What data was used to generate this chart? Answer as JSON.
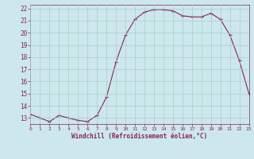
{
  "x": [
    0,
    1,
    2,
    3,
    4,
    5,
    6,
    7,
    8,
    9,
    10,
    11,
    12,
    13,
    14,
    15,
    16,
    17,
    18,
    19,
    20,
    21,
    22,
    23
  ],
  "y": [
    13.3,
    13.0,
    12.7,
    13.2,
    13.0,
    12.8,
    12.7,
    13.2,
    14.7,
    17.6,
    19.8,
    21.1,
    21.7,
    21.9,
    21.9,
    21.8,
    21.4,
    21.3,
    21.3,
    21.6,
    21.1,
    19.8,
    17.7,
    15.0
  ],
  "line_color": "#882255",
  "marker": "+",
  "marker_size": 3,
  "marker_lw": 0.8,
  "line_width": 0.8,
  "bg_color": "#cce8ec",
  "grid_color": "#aacccc",
  "xlabel": "Windchill (Refroidissement éolien,°C)",
  "xlabel_color": "#882255",
  "tick_color": "#882255",
  "xlim": [
    0,
    23
  ],
  "ylim": [
    12.5,
    22.3
  ],
  "yticks": [
    13,
    14,
    15,
    16,
    17,
    18,
    19,
    20,
    21,
    22
  ],
  "xticks": [
    0,
    1,
    2,
    3,
    4,
    5,
    6,
    7,
    8,
    9,
    10,
    11,
    12,
    13,
    14,
    15,
    16,
    17,
    18,
    19,
    20,
    21,
    22,
    23
  ]
}
